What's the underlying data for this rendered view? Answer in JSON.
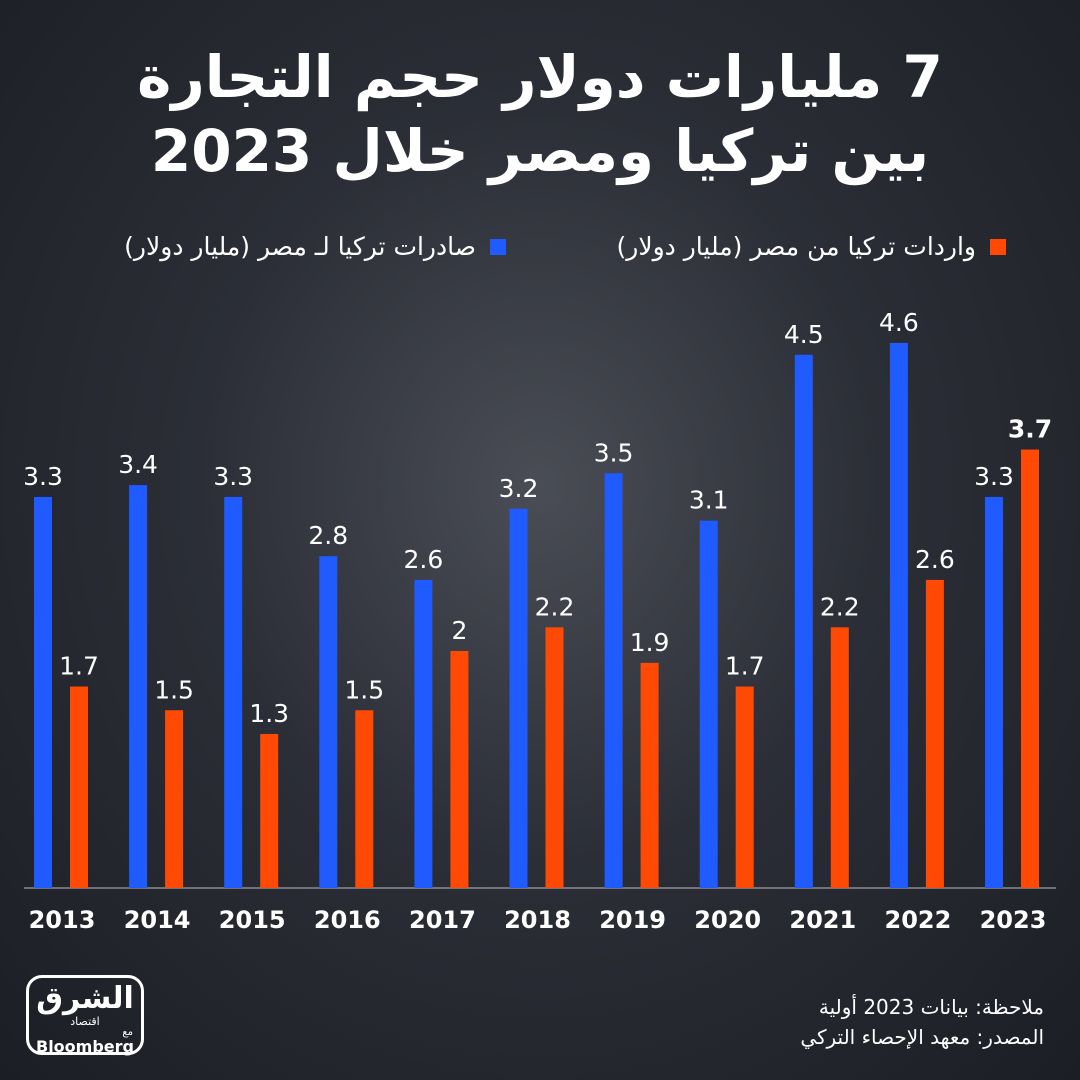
{
  "chart_data": {
    "type": "bar",
    "title": "7 مليارات دولار حجم التجارة بين تركيا ومصر خلال 2023",
    "categories": [
      "2013",
      "2014",
      "2015",
      "2016",
      "2017",
      "2018",
      "2019",
      "2020",
      "2021",
      "2022",
      "2023"
    ],
    "series": [
      {
        "name": "صادرات تركيا لـ مصر (مليار دولار)",
        "color": "#1f5bff",
        "values": [
          3.3,
          3.4,
          3.3,
          2.8,
          2.6,
          3.2,
          3.5,
          3.1,
          4.5,
          4.6,
          3.3
        ]
      },
      {
        "name": "واردات تركيا من مصر (مليار دولار)",
        "color": "#ff4a05",
        "values": [
          1.7,
          1.5,
          1.3,
          1.5,
          2,
          2.2,
          1.9,
          1.7,
          2.2,
          2.6,
          3.7
        ]
      }
    ],
    "notes": [
      "ملاحظة: بيانات 2023 أولية",
      "المصدر: معهد الإحصاء التركي"
    ],
    "logo": {
      "name": "الشرق",
      "sub": "اقتصاد",
      "with": "مع",
      "partner": "Bloomberg"
    }
  }
}
